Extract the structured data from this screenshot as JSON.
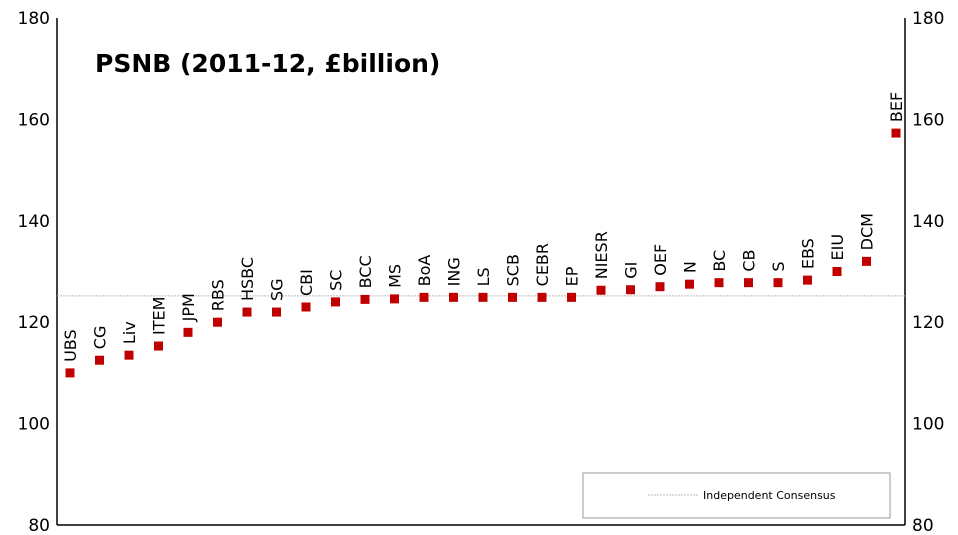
{
  "chart_data": {
    "type": "scatter",
    "title": "PSNB (2011-12, £billion)",
    "xlabel": "",
    "ylabel": "",
    "ylim": [
      80,
      180
    ],
    "yticks": [
      80,
      100,
      120,
      140,
      160,
      180
    ],
    "grid": false,
    "legend_position": "bottom-right",
    "categories": [
      "UBS",
      "CG",
      "Liv",
      "ITEM",
      "JPM",
      "RBS",
      "HSBC",
      "SG",
      "CBI",
      "SC",
      "BCC",
      "MS",
      "BoA",
      "ING",
      "LS",
      "SCB",
      "CEBR",
      "EP",
      "NIESR",
      "GI",
      "OEF",
      "N",
      "BC",
      "CB",
      "S",
      "EBS",
      "EIU",
      "DCM",
      "BEF"
    ],
    "series": [
      {
        "values": [
          110.0,
          112.5,
          113.5,
          115.3,
          118.0,
          120.0,
          122.0,
          122.0,
          123.0,
          124.0,
          124.5,
          124.6,
          124.9,
          124.9,
          124.9,
          124.9,
          124.9,
          124.9,
          126.3,
          126.4,
          127.0,
          127.5,
          127.8,
          127.8,
          127.8,
          128.3,
          130.0,
          132.0,
          157.3
        ],
        "color": "#c00000"
      }
    ],
    "reference_line": {
      "name": "Independent Consensus",
      "value": 125.2,
      "color": "#bbbbbb"
    }
  }
}
